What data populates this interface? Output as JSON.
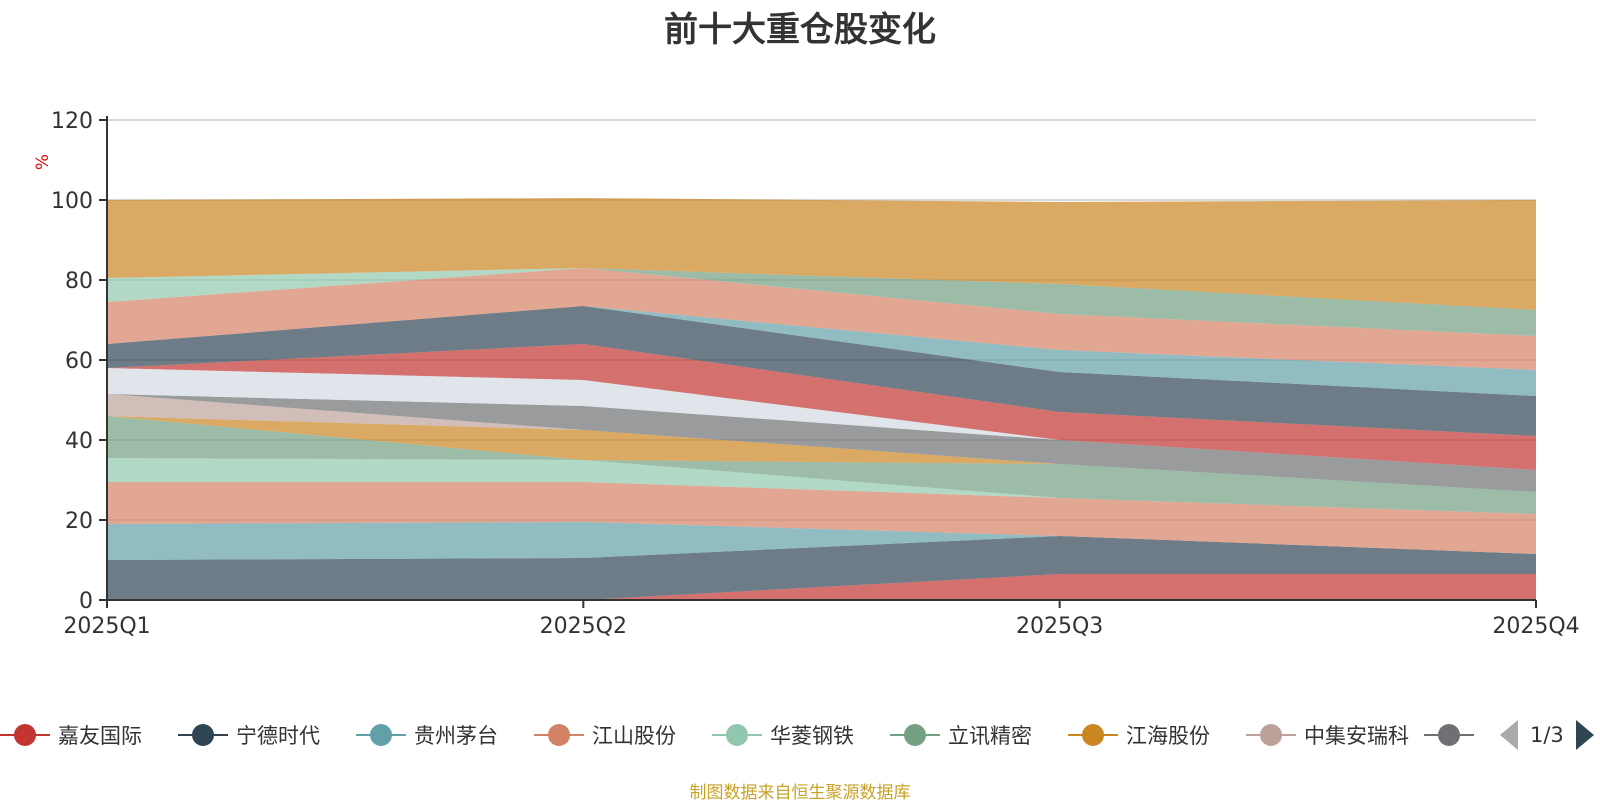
{
  "title": "前十大重仓股变化",
  "source_note": "制图数据来自恒生聚源数据库",
  "pager": {
    "text": "1/3"
  },
  "legend_visible": [
    {
      "name": "嘉友国际",
      "color": "#c23531",
      "icon": "circle-marker-icon"
    },
    {
      "name": "宁德时代",
      "color": "#2f4554",
      "icon": "circle-marker-icon"
    },
    {
      "name": "贵州茅台",
      "color": "#61a0a8",
      "icon": "circle-marker-icon"
    },
    {
      "name": "江山股份",
      "color": "#d48265",
      "icon": "circle-marker-icon"
    },
    {
      "name": "华菱钢铁",
      "color": "#91c7ae",
      "icon": "circle-marker-icon"
    },
    {
      "name": "立讯精密",
      "color": "#749f83",
      "icon": "circle-marker-icon"
    },
    {
      "name": "江海股份",
      "color": "#ca8622",
      "icon": "circle-marker-icon"
    },
    {
      "name": "中集安瑞科",
      "color": "#bda29a",
      "icon": "circle-marker-icon"
    },
    {
      "name": "",
      "color": "#6e7074",
      "icon": "circle-marker-icon"
    }
  ],
  "chart_data": {
    "type": "area",
    "stacked": true,
    "title": "前十大重仓股变化",
    "ylabel": "%",
    "ylim": [
      0,
      120
    ],
    "yticks": [
      0,
      20,
      40,
      60,
      80,
      100,
      120
    ],
    "categories": [
      "2025Q1",
      "2025Q2",
      "2025Q3",
      "2025Q4"
    ],
    "grid": true,
    "series": [
      {
        "color": "#c23531",
        "values": [
          0,
          0,
          6.5,
          6.5
        ]
      },
      {
        "color": "#2f4554",
        "values": [
          10,
          10.5,
          9.5,
          5
        ]
      },
      {
        "color": "#61a0a8",
        "values": [
          9,
          9,
          0,
          0
        ]
      },
      {
        "color": "#d48265",
        "values": [
          10.5,
          10,
          9.5,
          10
        ]
      },
      {
        "color": "#91c7ae",
        "values": [
          6,
          5.5,
          0,
          0
        ]
      },
      {
        "color": "#749f83",
        "values": [
          10.5,
          0,
          8.5,
          5.5
        ]
      },
      {
        "color": "#ca8622",
        "values": [
          0,
          7.5,
          0,
          0
        ]
      },
      {
        "color": "#bda29a",
        "values": [
          5.5,
          0,
          0,
          0
        ]
      },
      {
        "color": "#6e7074",
        "values": [
          0,
          6,
          6,
          5.5
        ]
      },
      {
        "color": "#c23531",
        "values": [
          0,
          0,
          0,
          0
        ]
      },
      {
        "color": "#d3d9e2",
        "values": [
          6.5,
          6.5,
          0,
          0
        ]
      },
      {
        "color": "#c23531",
        "values": [
          0,
          9,
          7,
          8.5
        ]
      },
      {
        "color": "#2f4554",
        "values": [
          6,
          9.5,
          10,
          10
        ]
      },
      {
        "color": "#61a0a8",
        "values": [
          0,
          0,
          5.5,
          6.5
        ]
      },
      {
        "color": "#d48265",
        "values": [
          10.5,
          9.5,
          9,
          8.5
        ]
      },
      {
        "color": "#91c7ae",
        "values": [
          6,
          0,
          0,
          0
        ]
      },
      {
        "color": "#749f83",
        "values": [
          0,
          0,
          7.5,
          6.5
        ]
      },
      {
        "color": "#ca8622",
        "values": [
          19.5,
          17.5,
          20.5,
          27.5
        ]
      }
    ]
  }
}
